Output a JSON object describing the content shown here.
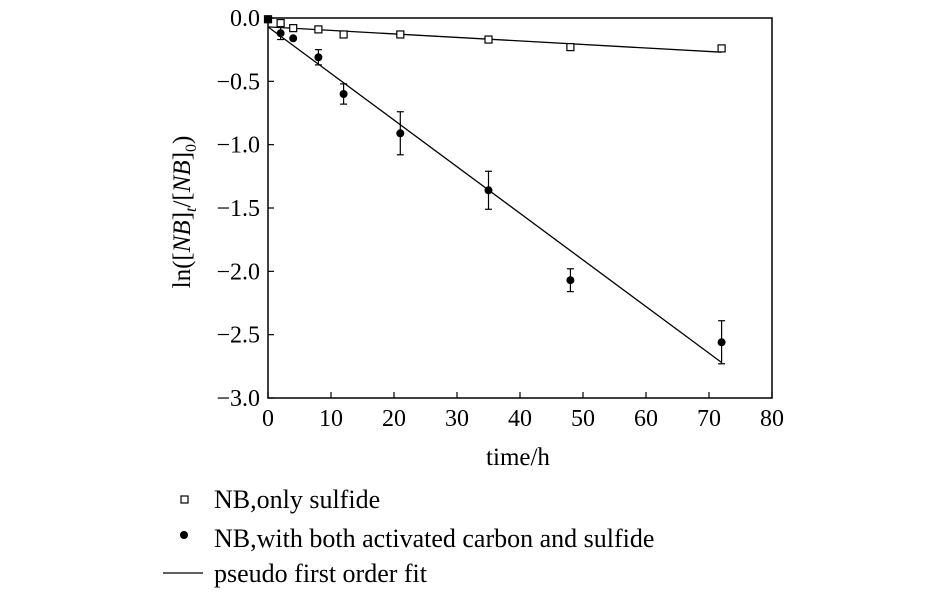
{
  "chart_data": {
    "type": "scatter",
    "xlabel": "time/h",
    "ylabel_parts": [
      "ln([",
      "NB",
      "]",
      "t",
      "/[",
      "NB",
      "]",
      "0",
      ")"
    ],
    "xlim": [
      0,
      80
    ],
    "ylim": [
      -3.0,
      0.0
    ],
    "x_ticks": [
      0,
      10,
      20,
      30,
      40,
      50,
      60,
      70,
      80
    ],
    "y_ticks": [
      0.0,
      -0.5,
      -1.0,
      -1.5,
      -2.0,
      -2.5,
      -3.0
    ],
    "x_tick_labels": [
      "0",
      "10",
      "20",
      "30",
      "40",
      "50",
      "60",
      "70",
      "80"
    ],
    "y_tick_labels": [
      "0.0",
      "−0.5",
      "−1.0",
      "−1.5",
      "−2.0",
      "−2.5",
      "−3.0"
    ],
    "grid": false,
    "series": [
      {
        "name": "NB, only sulfide",
        "marker": "open-square",
        "x": [
          0,
          2,
          4,
          8,
          12,
          21,
          35,
          48,
          72
        ],
        "y": [
          -0.01,
          -0.04,
          -0.08,
          -0.09,
          -0.13,
          -0.13,
          -0.17,
          -0.23,
          -0.24
        ]
      },
      {
        "name": "NB, with both activated carbon and sulfide",
        "marker": "filled-circle",
        "x": [
          0,
          2,
          4,
          8,
          12,
          21,
          35,
          48,
          72
        ],
        "y": [
          -0.01,
          -0.12,
          -0.16,
          -0.31,
          -0.6,
          -0.91,
          -1.36,
          -2.07,
          -2.56
        ],
        "error": [
          0,
          0.05,
          0,
          0.06,
          0.08,
          0.17,
          0.15,
          0.09,
          0.17
        ]
      }
    ],
    "fits": [
      {
        "name": "pseudo first order fit",
        "x": [
          0,
          72
        ],
        "y": [
          -0.07,
          -0.27
        ]
      },
      {
        "name": "pseudo first order fit",
        "x": [
          0,
          72
        ],
        "y": [
          -0.07,
          -2.72
        ]
      }
    ],
    "legend": {
      "position": "bottom-left",
      "entries": [
        {
          "symbol": "open-square",
          "label": "NB,only sulfide"
        },
        {
          "symbol": "filled-circle",
          "label": "NB,with both activated carbon and sulfide"
        },
        {
          "symbol": "line",
          "label": "pseudo first order fit"
        }
      ]
    }
  }
}
